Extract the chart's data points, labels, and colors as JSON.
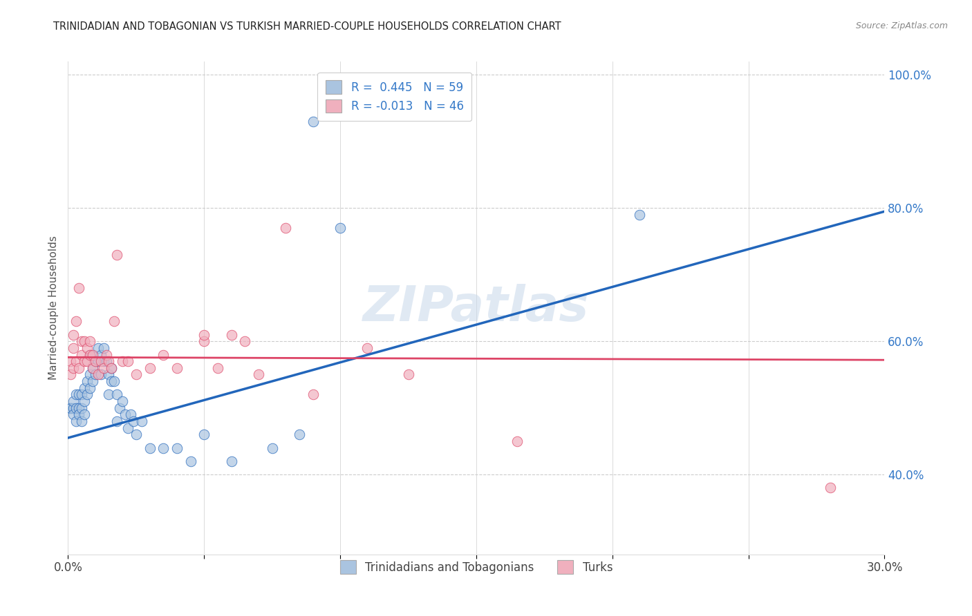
{
  "title": "TRINIDADIAN AND TOBAGONIAN VS TURKISH MARRIED-COUPLE HOUSEHOLDS CORRELATION CHART",
  "source": "Source: ZipAtlas.com",
  "ylabel": "Married-couple Households",
  "watermark": "ZIPatlas",
  "legend_label1": "R =  0.445   N = 59",
  "legend_label2": "R = -0.013   N = 46",
  "bottom_legend": [
    "Trinidadians and Tobagonians",
    "Turks"
  ],
  "xlim": [
    0.0,
    0.3
  ],
  "ylim": [
    0.28,
    1.02
  ],
  "blue_color": "#aac4e0",
  "pink_color": "#f0b0be",
  "blue_line_color": "#2266bb",
  "pink_line_color": "#dd4466",
  "blue_scatter": [
    [
      0.001,
      0.5
    ],
    [
      0.001,
      0.5
    ],
    [
      0.002,
      0.5
    ],
    [
      0.002,
      0.49
    ],
    [
      0.002,
      0.51
    ],
    [
      0.003,
      0.5
    ],
    [
      0.003,
      0.52
    ],
    [
      0.003,
      0.48
    ],
    [
      0.004,
      0.5
    ],
    [
      0.004,
      0.49
    ],
    [
      0.004,
      0.52
    ],
    [
      0.005,
      0.5
    ],
    [
      0.005,
      0.48
    ],
    [
      0.005,
      0.52
    ],
    [
      0.006,
      0.51
    ],
    [
      0.006,
      0.49
    ],
    [
      0.006,
      0.53
    ],
    [
      0.007,
      0.52
    ],
    [
      0.007,
      0.54
    ],
    [
      0.008,
      0.53
    ],
    [
      0.008,
      0.55
    ],
    [
      0.008,
      0.58
    ],
    [
      0.009,
      0.56
    ],
    [
      0.009,
      0.54
    ],
    [
      0.01,
      0.55
    ],
    [
      0.01,
      0.57
    ],
    [
      0.011,
      0.59
    ],
    [
      0.011,
      0.57
    ],
    [
      0.012,
      0.58
    ],
    [
      0.012,
      0.55
    ],
    [
      0.013,
      0.57
    ],
    [
      0.013,
      0.59
    ],
    [
      0.014,
      0.57
    ],
    [
      0.015,
      0.55
    ],
    [
      0.015,
      0.52
    ],
    [
      0.016,
      0.54
    ],
    [
      0.016,
      0.56
    ],
    [
      0.017,
      0.54
    ],
    [
      0.018,
      0.52
    ],
    [
      0.018,
      0.48
    ],
    [
      0.019,
      0.5
    ],
    [
      0.02,
      0.51
    ],
    [
      0.021,
      0.49
    ],
    [
      0.022,
      0.47
    ],
    [
      0.023,
      0.49
    ],
    [
      0.024,
      0.48
    ],
    [
      0.025,
      0.46
    ],
    [
      0.027,
      0.48
    ],
    [
      0.03,
      0.44
    ],
    [
      0.035,
      0.44
    ],
    [
      0.04,
      0.44
    ],
    [
      0.045,
      0.42
    ],
    [
      0.05,
      0.46
    ],
    [
      0.06,
      0.42
    ],
    [
      0.075,
      0.44
    ],
    [
      0.085,
      0.46
    ],
    [
      0.09,
      0.93
    ],
    [
      0.1,
      0.77
    ],
    [
      0.21,
      0.79
    ]
  ],
  "pink_scatter": [
    [
      0.001,
      0.55
    ],
    [
      0.001,
      0.57
    ],
    [
      0.002,
      0.56
    ],
    [
      0.002,
      0.61
    ],
    [
      0.002,
      0.59
    ],
    [
      0.003,
      0.57
    ],
    [
      0.003,
      0.63
    ],
    [
      0.004,
      0.68
    ],
    [
      0.004,
      0.56
    ],
    [
      0.005,
      0.58
    ],
    [
      0.005,
      0.6
    ],
    [
      0.006,
      0.57
    ],
    [
      0.006,
      0.6
    ],
    [
      0.007,
      0.57
    ],
    [
      0.007,
      0.59
    ],
    [
      0.008,
      0.58
    ],
    [
      0.008,
      0.6
    ],
    [
      0.009,
      0.58
    ],
    [
      0.009,
      0.56
    ],
    [
      0.01,
      0.57
    ],
    [
      0.011,
      0.55
    ],
    [
      0.012,
      0.57
    ],
    [
      0.013,
      0.56
    ],
    [
      0.014,
      0.58
    ],
    [
      0.015,
      0.57
    ],
    [
      0.016,
      0.56
    ],
    [
      0.017,
      0.63
    ],
    [
      0.018,
      0.73
    ],
    [
      0.02,
      0.57
    ],
    [
      0.022,
      0.57
    ],
    [
      0.025,
      0.55
    ],
    [
      0.03,
      0.56
    ],
    [
      0.035,
      0.58
    ],
    [
      0.04,
      0.56
    ],
    [
      0.05,
      0.6
    ],
    [
      0.05,
      0.61
    ],
    [
      0.055,
      0.56
    ],
    [
      0.06,
      0.61
    ],
    [
      0.065,
      0.6
    ],
    [
      0.07,
      0.55
    ],
    [
      0.08,
      0.77
    ],
    [
      0.09,
      0.52
    ],
    [
      0.11,
      0.59
    ],
    [
      0.125,
      0.55
    ],
    [
      0.165,
      0.45
    ],
    [
      0.28,
      0.38
    ]
  ],
  "blue_line": [
    [
      0.0,
      0.455
    ],
    [
      0.3,
      0.795
    ]
  ],
  "pink_line": [
    [
      0.0,
      0.576
    ],
    [
      0.3,
      0.572
    ]
  ]
}
